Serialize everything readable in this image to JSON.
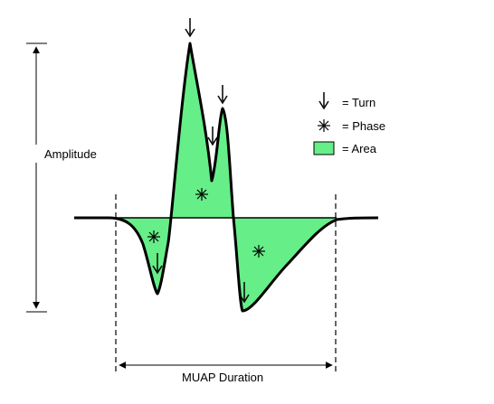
{
  "labels": {
    "amplitude": "Amplitude",
    "duration": "MUAP Duration"
  },
  "legend": {
    "items": [
      {
        "icon": "turn-arrow-icon",
        "text": "= Turn"
      },
      {
        "icon": "phase-asterisk-icon",
        "text": "= Phase"
      },
      {
        "icon": "area-swatch-icon",
        "text": "= Area"
      }
    ]
  },
  "colors": {
    "area_fill": "#66ee88",
    "line": "#000000",
    "background": "#ffffff"
  }
}
